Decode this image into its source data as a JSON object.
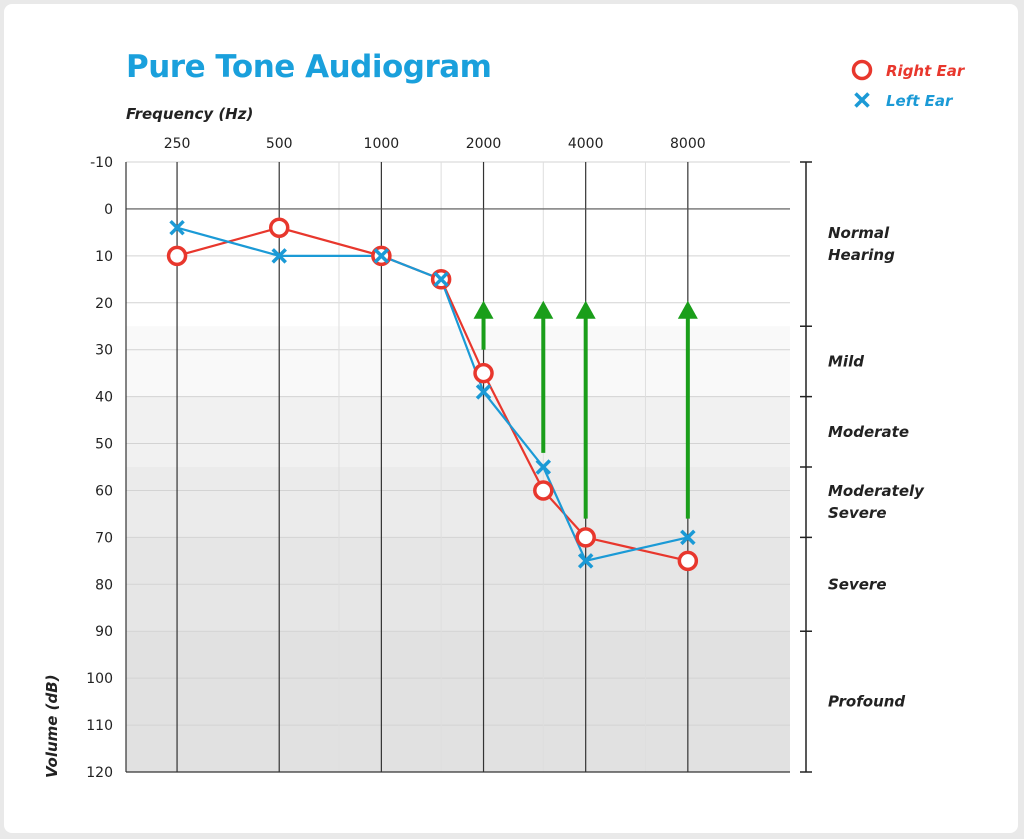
{
  "chart_data": {
    "type": "line",
    "title": "Pure Tone Audiogram",
    "xlabel": "Frequency (Hz)",
    "ylabel": "Volume (dB)",
    "x_tick_labels": [
      "250",
      "500",
      "1000",
      "2000",
      "4000",
      "8000"
    ],
    "x_tick_values": [
      250,
      500,
      1000,
      2000,
      4000,
      8000
    ],
    "x_minor_values": [
      750,
      1500,
      3000,
      6000
    ],
    "x_scale": "log",
    "x_range": [
      176.8,
      16000
    ],
    "ylim": [
      -10,
      120
    ],
    "y_inverted": true,
    "y_ticks": [
      "-10",
      "0",
      "10",
      "20",
      "30",
      "40",
      "50",
      "60",
      "70",
      "80",
      "90",
      "100",
      "110",
      "120"
    ],
    "grid": true,
    "legend_position": "top-right",
    "series": [
      {
        "name": "Right Ear",
        "marker": "circle",
        "color": "#e8372d",
        "points": [
          [
            250,
            10
          ],
          [
            500,
            4
          ],
          [
            1000,
            10
          ],
          [
            1500,
            15
          ],
          [
            2000,
            35
          ],
          [
            3000,
            60
          ],
          [
            4000,
            70
          ],
          [
            8000,
            75
          ]
        ]
      },
      {
        "name": "Left Ear",
        "marker": "x",
        "color": "#1b9ad6",
        "points": [
          [
            250,
            4
          ],
          [
            500,
            10
          ],
          [
            1000,
            10
          ],
          [
            1500,
            15
          ],
          [
            2000,
            39
          ],
          [
            3000,
            55
          ],
          [
            4000,
            75
          ],
          [
            8000,
            70
          ]
        ]
      }
    ],
    "arrows": {
      "color": "#1a9e1a",
      "items": [
        {
          "x": 2000,
          "from": 30,
          "to": 20
        },
        {
          "x": 3000,
          "from": 52,
          "to": 20
        },
        {
          "x": 4000,
          "from": 66,
          "to": 20
        },
        {
          "x": 8000,
          "from": 66,
          "to": 20
        }
      ]
    },
    "severity_bands": [
      {
        "label": [
          "Normal",
          "Hearing"
        ],
        "from": -10,
        "to": 25,
        "shade": "#ffffff"
      },
      {
        "label": [
          "Mild"
        ],
        "from": 25,
        "to": 40,
        "shade": "#f9f9f9"
      },
      {
        "label": [
          "Moderate"
        ],
        "from": 40,
        "to": 55,
        "shade": "#f1f1f1"
      },
      {
        "label": [
          "Moderately",
          "Severe"
        ],
        "from": 55,
        "to": 70,
        "shade": "#ebebeb"
      },
      {
        "label": [
          "Severe"
        ],
        "from": 70,
        "to": 90,
        "shade": "#e6e6e6"
      },
      {
        "label": [
          "Profound"
        ],
        "from": 90,
        "to": 120,
        "shade": "#e1e1e1"
      }
    ]
  }
}
